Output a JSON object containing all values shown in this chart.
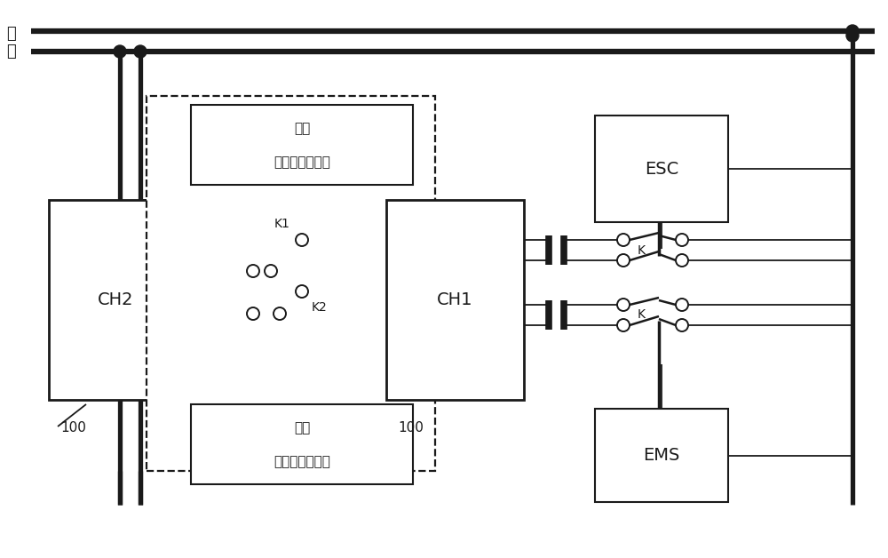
{
  "bg_color": "#ffffff",
  "lc": "#1a1a1a",
  "bus_label": "总\n线",
  "ch2_label": "CH2",
  "ch1_label": "CH1",
  "esc_label": "ESC",
  "ems_label": "EMS",
  "mod1_line1": "第一",
  "mod1_line2": "信号自定义模块",
  "mod2_line1": "第二",
  "mod2_line2": "信号自定义模块",
  "k1_label": "K1",
  "k2_label": "K2",
  "k_label": "K",
  "label_100": "100",
  "figsize": [
    10.0,
    6.28
  ],
  "dpi": 100
}
